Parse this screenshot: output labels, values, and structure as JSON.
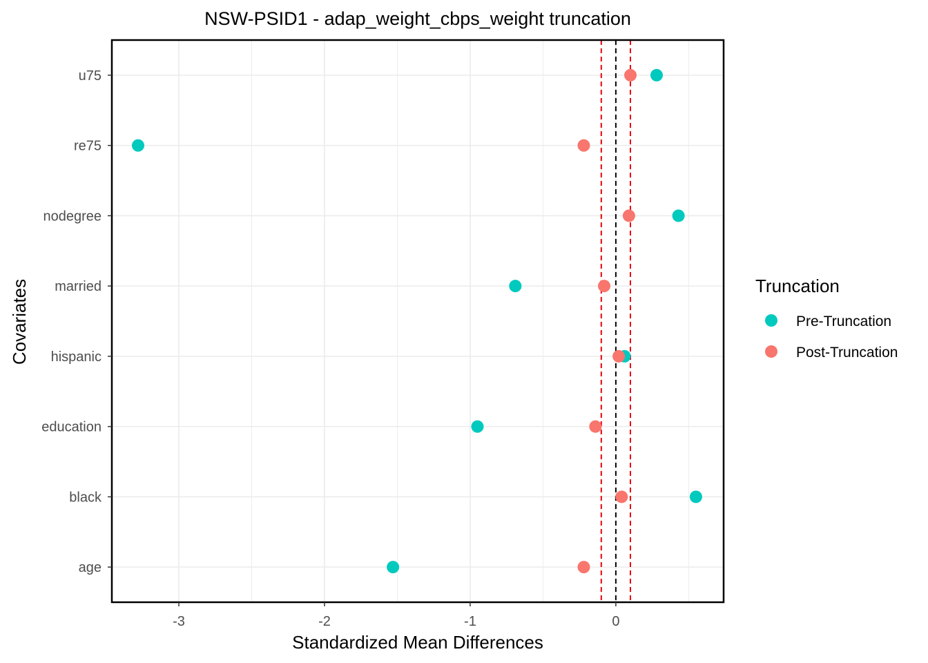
{
  "chart_data": {
    "type": "scatter",
    "title": "NSW-PSID1 - adap_weight_cbps_weight truncation",
    "xlabel": "Standardized Mean Differences",
    "ylabel": "Covariates",
    "xlim": [
      -3.46,
      0.74
    ],
    "x_ticks": [
      -3,
      -2,
      -1,
      0
    ],
    "x_tick_labels": [
      "-3",
      "-2",
      "-1",
      "0"
    ],
    "categories": [
      "age",
      "black",
      "education",
      "hispanic",
      "married",
      "nodegree",
      "re75",
      "u75"
    ],
    "grid": true,
    "reference_lines": [
      {
        "x": 0,
        "color": "#000000",
        "style": "dashed"
      },
      {
        "x": -0.1,
        "color": "#e8000b",
        "style": "dashed"
      },
      {
        "x": 0.1,
        "color": "#e8000b",
        "style": "dashed"
      }
    ],
    "legend": {
      "title": "Truncation",
      "position": "right"
    },
    "series": [
      {
        "name": "Pre-Truncation",
        "color": "#00c9be",
        "values": [
          -1.53,
          0.55,
          -0.95,
          0.06,
          -0.69,
          0.43,
          -3.28,
          0.28
        ]
      },
      {
        "name": "Post-Truncation",
        "color": "#f8766d",
        "values": [
          -0.22,
          0.04,
          -0.14,
          0.02,
          -0.08,
          0.09,
          -0.22,
          0.1
        ]
      }
    ]
  }
}
